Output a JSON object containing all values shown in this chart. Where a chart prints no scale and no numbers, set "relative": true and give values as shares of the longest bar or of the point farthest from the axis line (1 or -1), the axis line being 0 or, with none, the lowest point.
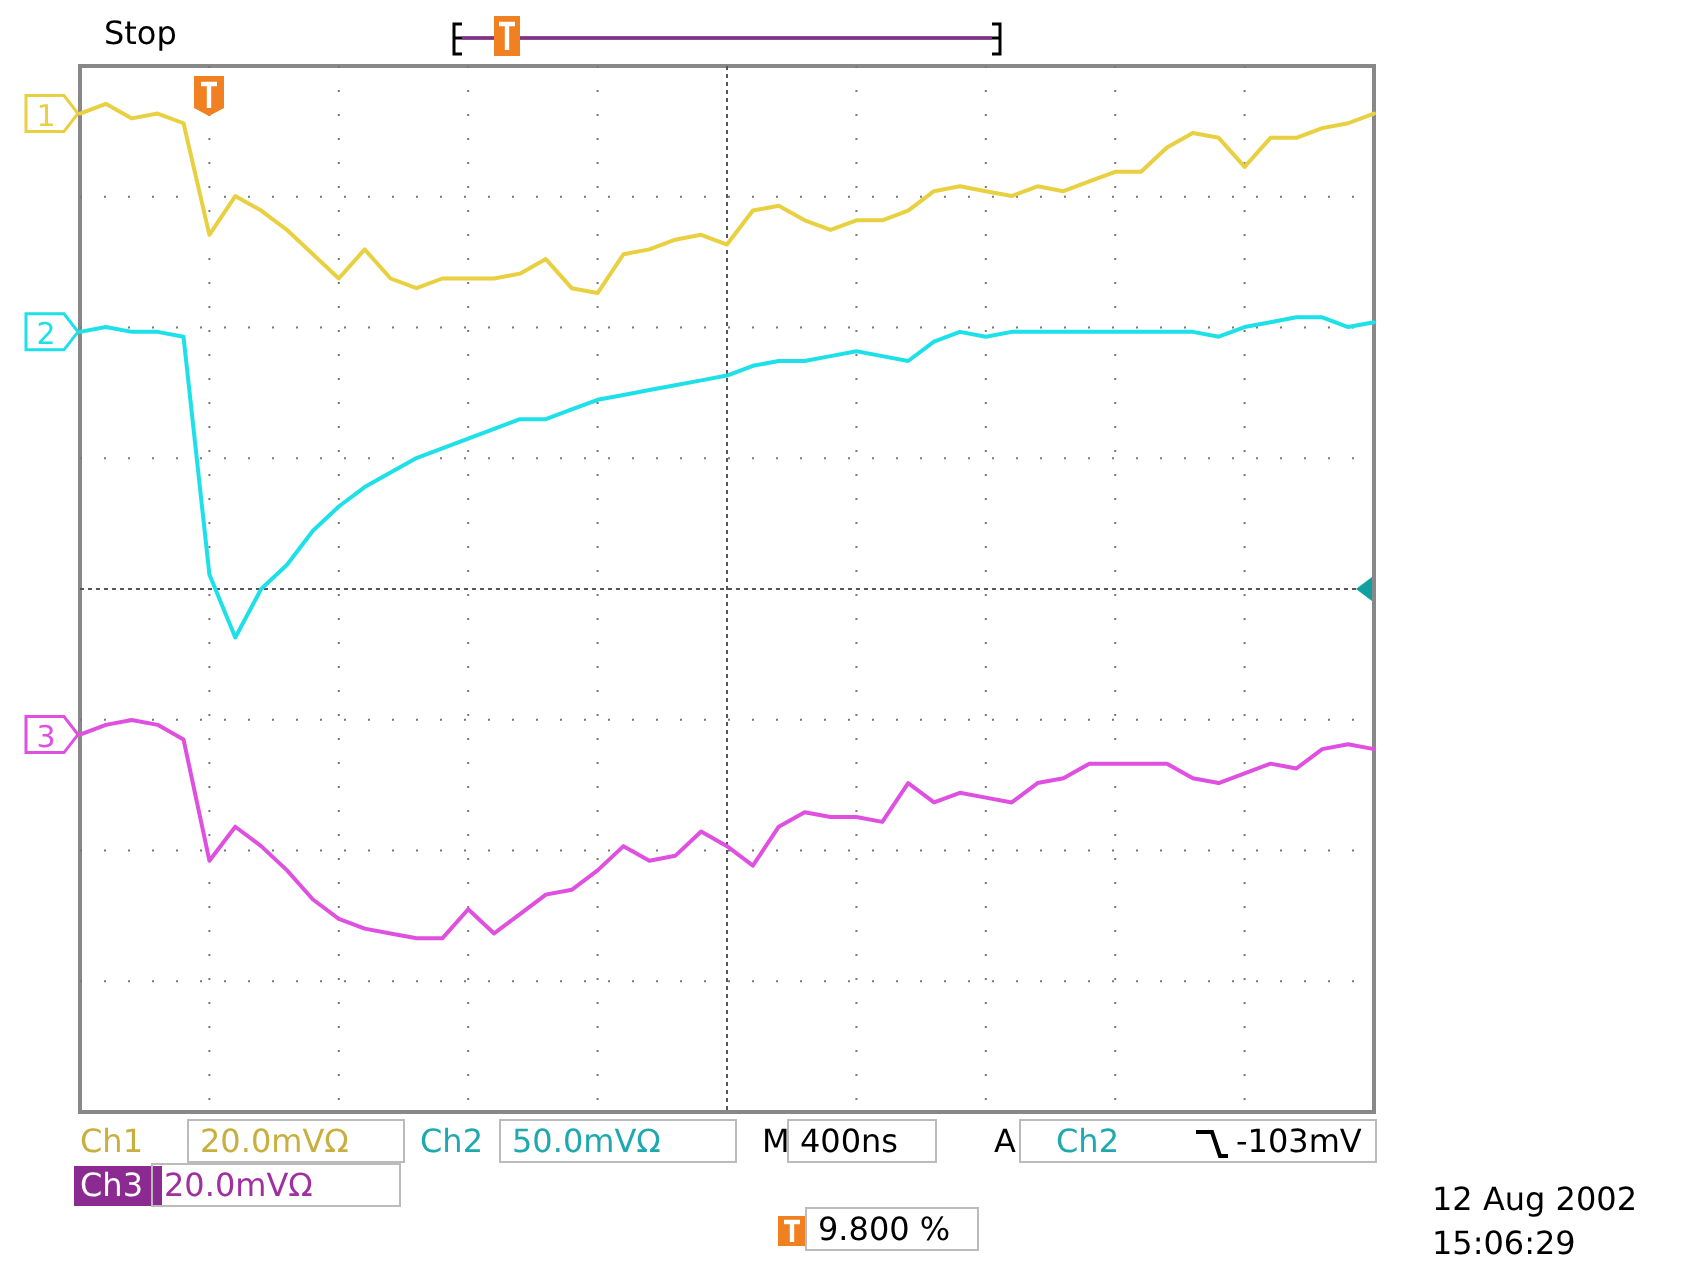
{
  "chart_data": {
    "type": "line",
    "relative": true,
    "grid": true,
    "legend": false,
    "marker": "none",
    "line_style": "solid",
    "categories": [
      null,
      null,
      null,
      null,
      null,
      null,
      null,
      null,
      null,
      null,
      null,
      null,
      null,
      null,
      null,
      null,
      null,
      null,
      null,
      null,
      null,
      null,
      null,
      null,
      null,
      null,
      null,
      null,
      null,
      null,
      null,
      null,
      null,
      null,
      null,
      null,
      null,
      null,
      null,
      null,
      null,
      null,
      null,
      null,
      null,
      null,
      null,
      null,
      null,
      null,
      null
    ],
    "series": [
      {
        "name": "1",
        "color": "#e8d040",
        "values": [
          0.98,
          1.0,
          0.97,
          0.98,
          0.96,
          0.73,
          0.81,
          0.78,
          0.74,
          0.69,
          0.64,
          0.7,
          0.64,
          0.62,
          0.64,
          0.64,
          0.64,
          0.65,
          0.68,
          0.62,
          0.61,
          0.69,
          0.7,
          0.72,
          0.73,
          0.71,
          0.78,
          0.79,
          0.76,
          0.74,
          0.76,
          0.76,
          0.78,
          0.82,
          0.83,
          0.82,
          0.81,
          0.83,
          0.82,
          0.84,
          0.86,
          0.86,
          0.91,
          0.94,
          0.93,
          0.87,
          0.93,
          0.93,
          0.95,
          0.96,
          0.98
        ]
      },
      {
        "name": "2",
        "color": "#1ee0e8",
        "values": [
          0.53,
          0.54,
          0.53,
          0.53,
          0.52,
          0.03,
          -0.1,
          0.0,
          0.05,
          0.12,
          0.17,
          0.21,
          0.24,
          0.27,
          0.29,
          0.31,
          0.33,
          0.35,
          0.35,
          0.37,
          0.39,
          0.4,
          0.41,
          0.42,
          0.43,
          0.44,
          0.46,
          0.47,
          0.47,
          0.48,
          0.49,
          0.48,
          0.47,
          0.51,
          0.53,
          0.52,
          0.53,
          0.53,
          0.53,
          0.53,
          0.53,
          0.53,
          0.53,
          0.53,
          0.52,
          0.54,
          0.55,
          0.56,
          0.56,
          0.54,
          0.55
        ]
      },
      {
        "name": "3",
        "color": "#e050e0",
        "values": [
          -0.3,
          -0.28,
          -0.27,
          -0.28,
          -0.31,
          -0.56,
          -0.49,
          -0.53,
          -0.58,
          -0.64,
          -0.68,
          -0.7,
          -0.71,
          -0.72,
          -0.72,
          -0.66,
          -0.71,
          -0.67,
          -0.63,
          -0.62,
          -0.58,
          -0.53,
          -0.56,
          -0.55,
          -0.5,
          -0.53,
          -0.57,
          -0.49,
          -0.46,
          -0.47,
          -0.47,
          -0.48,
          -0.4,
          -0.44,
          -0.42,
          -0.43,
          -0.44,
          -0.4,
          -0.39,
          -0.36,
          -0.36,
          -0.36,
          -0.36,
          -0.39,
          -0.4,
          -0.38,
          -0.36,
          -0.37,
          -0.33,
          -0.32,
          -0.33
        ]
      }
    ],
    "ref_lines": [
      {
        "axis": "y",
        "value": 0,
        "line_style": "dashed"
      }
    ],
    "annotations": [
      "Stop",
      "Ch1",
      "20.0mVΩ",
      "Ch2",
      "50.0mVΩ",
      "M",
      "400ns",
      "A",
      "Ch2",
      "-103mV",
      "Ch3",
      "20.0mVΩ",
      "9.800 %",
      "12 Aug 2002",
      "15:06:29"
    ]
  }
}
